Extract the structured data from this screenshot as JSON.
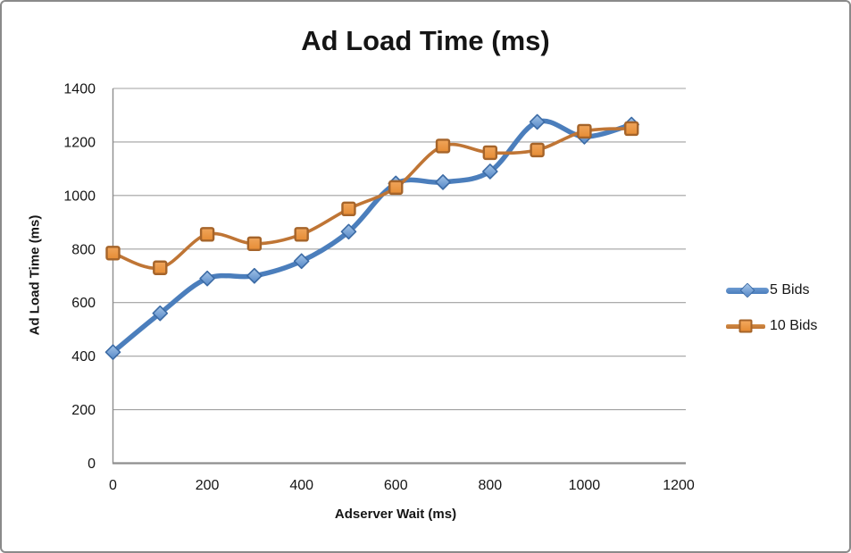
{
  "frame": {
    "background": "#FFFFFF",
    "border_color": "#8A8A8A"
  },
  "chart_data": {
    "type": "line",
    "title": "Ad Load Time (ms)",
    "xlabel": "Adserver Wait (ms)",
    "ylabel": "Ad Load Time (ms)",
    "x": [
      0,
      100,
      200,
      300,
      400,
      500,
      600,
      700,
      800,
      900,
      1000,
      1100
    ],
    "series": [
      {
        "name": "5 Bids",
        "marker": "diamond",
        "line_color": "#4B7EBC",
        "line_width": 5.5,
        "marker_fill_top": "#A3C4E8",
        "marker_fill_bottom": "#5688C7",
        "marker_border": "#3C6BA5",
        "values": [
          415,
          560,
          690,
          700,
          755,
          865,
          1045,
          1050,
          1090,
          1275,
          1220,
          1265
        ]
      },
      {
        "name": "10 Bids",
        "marker": "square",
        "line_color": "#BF7535",
        "line_width": 3.6,
        "marker_fill_top": "#F0A55B",
        "marker_fill_bottom": "#E68C34",
        "marker_border": "#A5642A",
        "values": [
          785,
          730,
          855,
          820,
          855,
          950,
          1030,
          1185,
          1160,
          1170,
          1240,
          1250
        ]
      }
    ],
    "xlim": [
      0,
      1200
    ],
    "ylim": [
      0,
      1400
    ],
    "x_ticks": [
      0,
      200,
      400,
      600,
      800,
      1000,
      1200
    ],
    "y_ticks": [
      0,
      200,
      400,
      600,
      800,
      1000,
      1200,
      1400
    ],
    "grid": "horizontal",
    "smooth": true,
    "legend_position": "right",
    "gridline_color": "#A0A0A0",
    "axis_color": "#8E8E8E",
    "text_color": "#151515"
  }
}
